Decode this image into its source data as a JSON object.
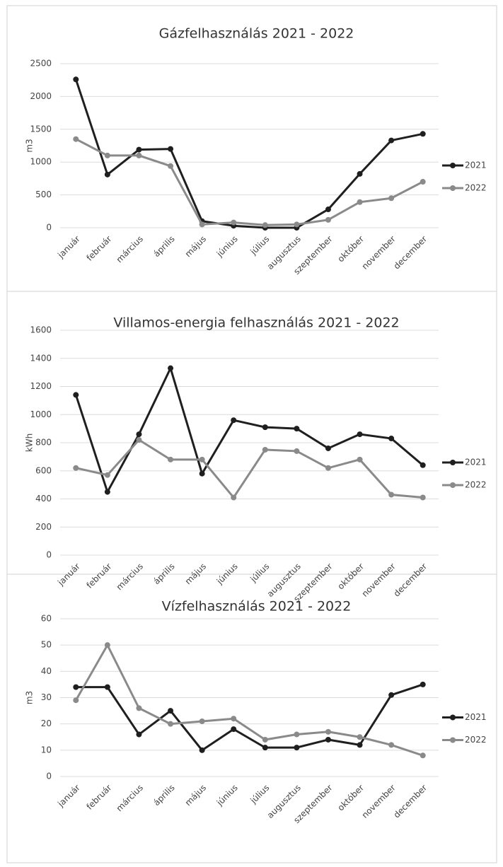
{
  "chart_data": [
    {
      "type": "line",
      "title": "Gázfelhasználás 2021 - 2022",
      "ylabel": "m3",
      "categories": [
        "január",
        "február",
        "március",
        "április",
        "május",
        "június",
        "július",
        "augusztus",
        "szeptember",
        "október",
        "november",
        "december"
      ],
      "series": [
        {
          "name": "2021",
          "color": "#1f1f1f",
          "values": [
            2260,
            810,
            1190,
            1200,
            100,
            30,
            0,
            0,
            280,
            820,
            1330,
            1430
          ]
        },
        {
          "name": "2022",
          "color": "#8a8a8a",
          "values": [
            1350,
            1100,
            1100,
            940,
            50,
            80,
            40,
            50,
            120,
            390,
            450,
            700
          ]
        }
      ],
      "ylim": [
        0,
        2500
      ],
      "yticks": [
        0,
        500,
        1000,
        1500,
        2000,
        2500
      ],
      "grid": true,
      "legend": "right"
    },
    {
      "type": "line",
      "title": "Villamos-energia felhasználás 2021 - 2022",
      "ylabel": "kWh",
      "categories": [
        "január",
        "február",
        "március",
        "április",
        "május",
        "június",
        "július",
        "augusztus",
        "szeptember",
        "október",
        "november",
        "december"
      ],
      "series": [
        {
          "name": "2021",
          "color": "#1f1f1f",
          "values": [
            1140,
            450,
            860,
            1330,
            580,
            960,
            910,
            900,
            760,
            860,
            830,
            640
          ]
        },
        {
          "name": "2022",
          "color": "#8a8a8a",
          "values": [
            620,
            570,
            820,
            680,
            680,
            410,
            750,
            740,
            620,
            680,
            430,
            410
          ]
        }
      ],
      "ylim": [
        0,
        1600
      ],
      "yticks": [
        0,
        200,
        400,
        600,
        800,
        1000,
        1200,
        1400,
        1600
      ],
      "grid": true,
      "legend": "right"
    },
    {
      "type": "line",
      "title": "Vízfelhasználás 2021 - 2022",
      "ylabel": "m3",
      "categories": [
        "január",
        "február",
        "március",
        "április",
        "május",
        "június",
        "július",
        "augusztus",
        "szeptember",
        "október",
        "november",
        "december"
      ],
      "series": [
        {
          "name": "2021",
          "color": "#1f1f1f",
          "values": [
            34,
            34,
            16,
            25,
            10,
            18,
            11,
            11,
            14,
            12,
            31,
            35
          ]
        },
        {
          "name": "2022",
          "color": "#8a8a8a",
          "values": [
            29,
            50,
            26,
            20,
            21,
            22,
            14,
            16,
            17,
            15,
            12,
            8
          ]
        }
      ],
      "ylim": [
        0,
        60
      ],
      "yticks": [
        0,
        10,
        20,
        30,
        40,
        50,
        60
      ],
      "grid": true,
      "legend": "right"
    }
  ]
}
